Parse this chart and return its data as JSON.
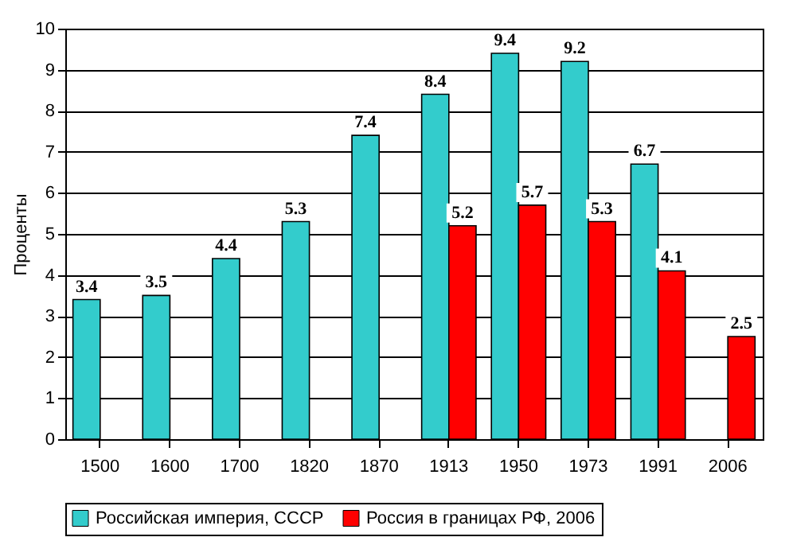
{
  "chart_data": {
    "type": "bar",
    "ylabel": "Проценты",
    "categories": [
      "1500",
      "1600",
      "1700",
      "1820",
      "1870",
      "1913",
      "1950",
      "1973",
      "1991",
      "2006"
    ],
    "series": [
      {
        "name": "Российская империя, СССР",
        "color": "#33cccc",
        "values": [
          3.4,
          3.5,
          4.4,
          5.3,
          7.4,
          8.4,
          9.4,
          9.2,
          6.7,
          null
        ]
      },
      {
        "name": "Россия в границах РФ, 2006",
        "color": "#ff0000",
        "values": [
          null,
          null,
          null,
          null,
          null,
          5.2,
          5.7,
          5.3,
          4.1,
          2.5
        ]
      }
    ],
    "ylim": [
      0,
      10
    ],
    "yticks": [
      0,
      1,
      2,
      3,
      4,
      5,
      6,
      7,
      8,
      9,
      10
    ],
    "grid": "y",
    "legend": "bottom",
    "data_labels": true
  }
}
